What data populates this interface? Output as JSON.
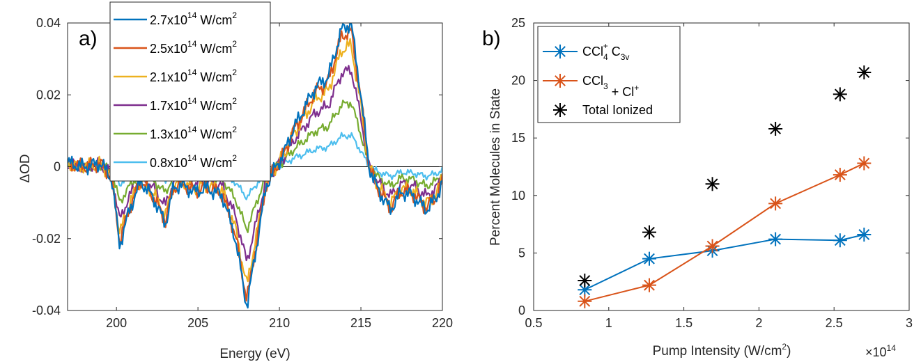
{
  "chart_data": [
    {
      "type": "line",
      "panel_label": "a)",
      "xlabel": "Energy (eV)",
      "ylabel": "ΔOD",
      "xlim": [
        197,
        220
      ],
      "ylim": [
        -0.04,
        0.04
      ],
      "xticks": [
        200,
        205,
        210,
        215,
        220
      ],
      "xtick_labels": [
        "200",
        "205",
        "210",
        "215",
        "220"
      ],
      "yticks": [
        -0.04,
        -0.02,
        0,
        0.02,
        0.04
      ],
      "ytick_labels": [
        "-0.04",
        "-0.02",
        "0",
        "0.02",
        "0.04"
      ],
      "zero_line": true,
      "legend_position": "top-center",
      "energy_x": [
        197.0,
        198.0,
        199.0,
        199.7,
        200.2,
        200.8,
        201.5,
        202.3,
        203.0,
        203.5,
        204.0,
        204.8,
        205.5,
        206.5,
        207.3,
        208.0,
        208.6,
        209.2,
        209.8,
        210.3,
        210.8,
        211.5,
        212.2,
        213.0,
        213.8,
        214.4,
        215.0,
        215.5,
        216.0,
        216.8,
        217.5,
        218.2,
        219.0,
        219.6,
        220.0
      ],
      "series": [
        {
          "name": "2.7x10^14 W/cm^2",
          "legend_main": "2.7x10",
          "legend_sup": "14",
          "legend_unit": " W/cm",
          "legend_unit_sup": "2",
          "color": "#0072BD",
          "scale": 1.0
        },
        {
          "name": "2.5x10^14 W/cm^2",
          "legend_main": "2.5x10",
          "legend_sup": "14",
          "legend_unit": " W/cm",
          "legend_unit_sup": "2",
          "color": "#D95319",
          "scale": 0.95
        },
        {
          "name": "2.1x10^14 W/cm^2",
          "legend_main": "2.1x10",
          "legend_sup": "14",
          "legend_unit": " W/cm",
          "legend_unit_sup": "2",
          "color": "#EDB120",
          "scale": 0.85
        },
        {
          "name": "1.7x10^14 W/cm^2",
          "legend_main": "1.7x10",
          "legend_sup": "14",
          "legend_unit": " W/cm",
          "legend_unit_sup": "2",
          "color": "#7E2F8E",
          "scale": 0.68
        },
        {
          "name": "1.3x10^14 W/cm^2",
          "legend_main": "1.3x10",
          "legend_sup": "14",
          "legend_unit": " W/cm",
          "legend_unit_sup": "2",
          "color": "#77AC30",
          "scale": 0.45
        },
        {
          "name": "0.8x10^14 W/cm^2",
          "legend_main": "0.8x10",
          "legend_sup": "14",
          "legend_unit": " W/cm",
          "legend_unit_sup": "2",
          "color": "#4DBEEE",
          "scale": 0.22
        }
      ],
      "reference_series_values": [
        0.001,
        0.0,
        0.001,
        -0.003,
        -0.022,
        -0.012,
        -0.004,
        -0.009,
        -0.016,
        -0.006,
        -0.005,
        -0.007,
        -0.006,
        -0.008,
        -0.02,
        -0.039,
        -0.022,
        -0.005,
        0.0,
        0.004,
        0.01,
        0.016,
        0.022,
        0.025,
        0.038,
        0.04,
        0.02,
        0.0,
        -0.006,
        -0.012,
        -0.007,
        -0.008,
        -0.012,
        -0.009,
        -0.004
      ]
    },
    {
      "type": "line",
      "panel_label": "b)",
      "xlabel": "Pump Intensity (W/cm",
      "xlabel_sup": "2",
      "xlabel_end": ")",
      "ylabel": "Percent Molecules in State",
      "xlim": [
        0.5,
        3
      ],
      "ylim": [
        0,
        25
      ],
      "xticks": [
        0.5,
        1,
        1.5,
        2,
        2.5,
        3
      ],
      "xtick_labels": [
        "0.5",
        "1",
        "1.5",
        "2",
        "2.5",
        "3"
      ],
      "yticks": [
        0,
        5,
        10,
        15,
        20,
        25
      ],
      "ytick_labels": [
        "0",
        "5",
        "10",
        "15",
        "20",
        "25"
      ],
      "x_multiplier": "×10",
      "x_multiplier_sup": "14",
      "legend_position": "top-left",
      "x": [
        0.84,
        1.27,
        1.69,
        2.11,
        2.54,
        2.7
      ],
      "series": [
        {
          "name": "CCl4+ C3v",
          "legend_parts": [
            "CCl",
            "4",
            "+",
            " C",
            "3v"
          ],
          "color": "#0072BD",
          "values": [
            1.8,
            4.5,
            5.2,
            6.2,
            6.1,
            6.6
          ],
          "style": "line-marker"
        },
        {
          "name": "CCl3 + Cl+",
          "legend_parts": [
            "CCl",
            "3",
            "",
            " + Cl",
            "+"
          ],
          "color": "#D95319",
          "values": [
            0.8,
            2.2,
            5.6,
            9.3,
            11.8,
            12.8
          ],
          "style": "line-marker"
        },
        {
          "name": "Total Ionized",
          "legend_text": "Total Ionized",
          "color": "#000000",
          "values": [
            2.6,
            6.8,
            11.0,
            15.8,
            18.8,
            20.7
          ],
          "style": "marker-only"
        }
      ]
    }
  ]
}
